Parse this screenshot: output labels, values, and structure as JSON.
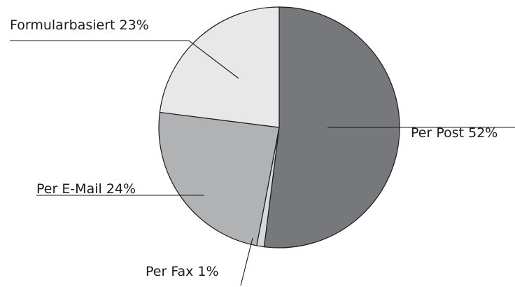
{
  "chart_data": {
    "type": "pie",
    "title": "",
    "slices": [
      {
        "label": "Per Post 52%",
        "value": 52,
        "color": "#77787b"
      },
      {
        "label": "Per Fax 1%",
        "value": 1,
        "color": "#d7d8d9"
      },
      {
        "label": "Per E-Mail 24%",
        "value": 24,
        "color": "#b1b2b4"
      },
      {
        "label": "Formularbasiert 23%",
        "value": 23,
        "color": "#e8e8e8"
      }
    ],
    "start_angle_deg": 0,
    "direction": "clockwise",
    "legend": "none"
  }
}
